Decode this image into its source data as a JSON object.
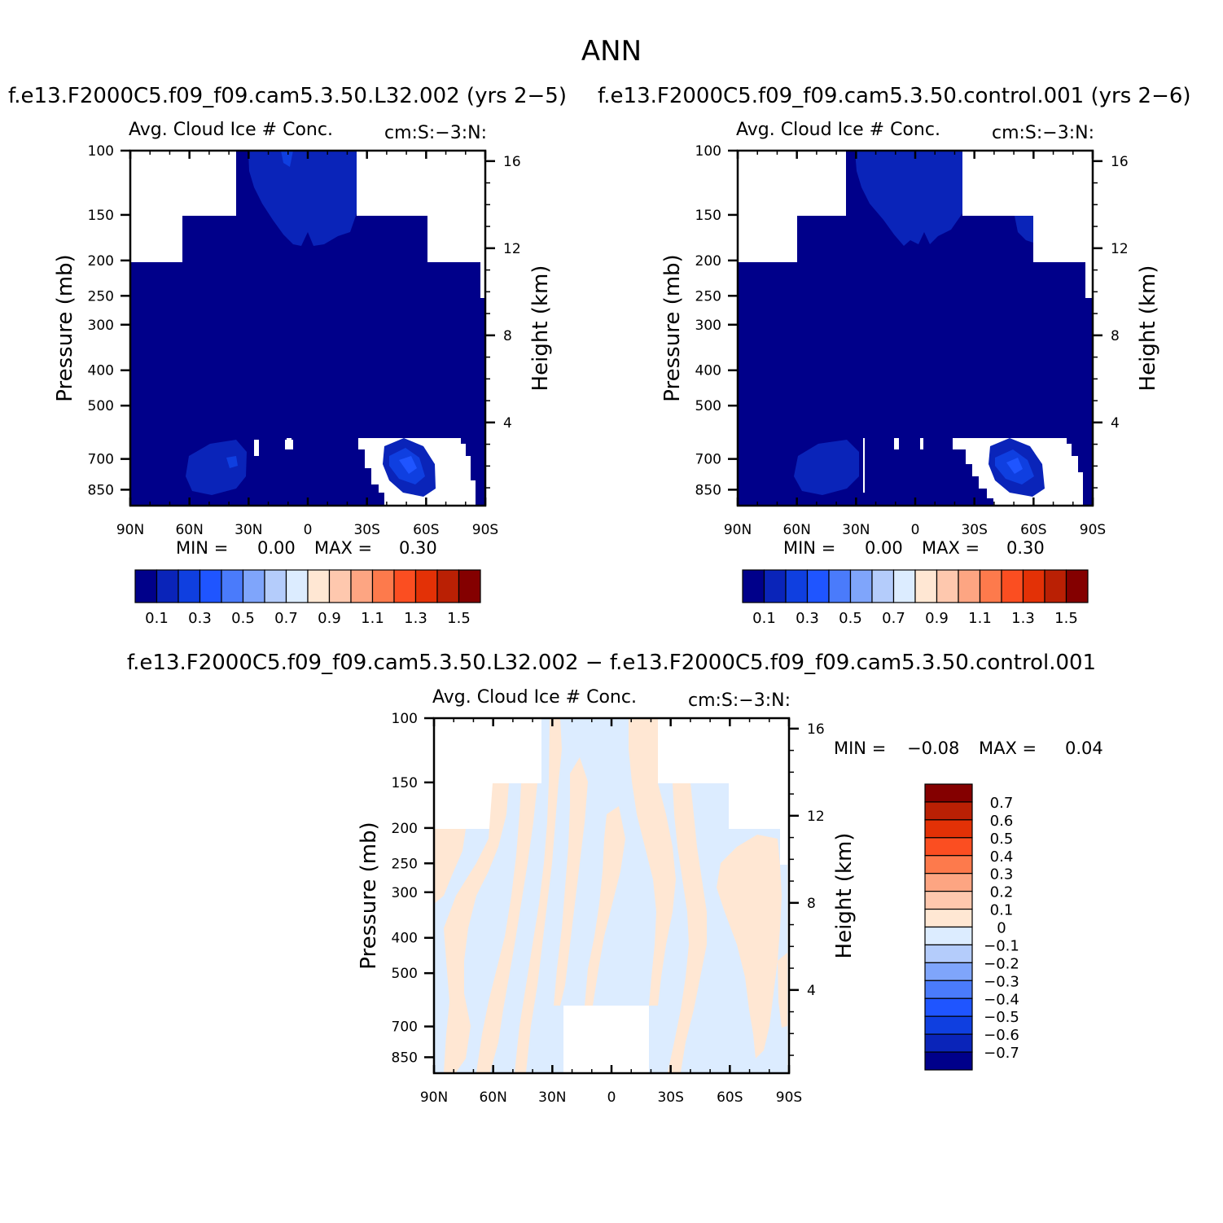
{
  "page_title": "ANN",
  "chart_data": [
    {
      "type": "heatmap",
      "panel": "top-left",
      "title": "f.e13.F2000C5.f09_f09.cam5.3.50.L32.002  (yrs 2-5)",
      "subtitle_left": "Avg. Cloud Ice # Conc.",
      "subtitle_right": "cm:S:-3:N:",
      "ylabel": "Pressure (mb)",
      "y2label": "Height (km)",
      "xticks": [
        "90N",
        "60N",
        "30N",
        "0",
        "30S",
        "60S",
        "90S"
      ],
      "yticks": [
        "100",
        "150",
        "200",
        "250",
        "300",
        "400",
        "500",
        "700",
        "850"
      ],
      "y2ticks": [
        "16",
        "12",
        "8",
        "4"
      ],
      "min_label": "MIN =",
      "min_value": "0.00",
      "max_label": "MAX =",
      "max_value": "0.30",
      "colorbar_labels": [
        "0.1",
        "0.3",
        "0.5",
        "0.7",
        "0.9",
        "1.1",
        "1.3",
        "1.5"
      ],
      "colorbar_colors": [
        "#00008a",
        "#0a24b9",
        "#0f3fe0",
        "#1f55ff",
        "#4a7bfb",
        "#7fa5fb",
        "#b4ccfb",
        "#dcecff",
        "#ffe7d3",
        "#fec8ae",
        "#fda582",
        "#fd7a4c",
        "#fb4e21",
        "#e33106",
        "#ba2004",
        "#840000"
      ]
    },
    {
      "type": "heatmap",
      "panel": "top-right",
      "title": "f.e13.F2000C5.f09_f09.cam5.3.50.control.001  (yrs 2-6)",
      "subtitle_left": "Avg. Cloud Ice # Conc.",
      "subtitle_right": "cm:S:-3:N:",
      "ylabel": "Pressure (mb)",
      "y2label": "Height (km)",
      "xticks": [
        "90N",
        "60N",
        "30N",
        "0",
        "30S",
        "60S",
        "90S"
      ],
      "yticks": [
        "100",
        "150",
        "200",
        "250",
        "300",
        "400",
        "500",
        "700",
        "850"
      ],
      "y2ticks": [
        "16",
        "12",
        "8",
        "4"
      ],
      "min_label": "MIN =",
      "min_value": "0.00",
      "max_label": "MAX =",
      "max_value": "0.30",
      "colorbar_labels": [
        "0.1",
        "0.3",
        "0.5",
        "0.7",
        "0.9",
        "1.1",
        "1.3",
        "1.5"
      ],
      "colorbar_colors": [
        "#00008a",
        "#0a24b9",
        "#0f3fe0",
        "#1f55ff",
        "#4a7bfb",
        "#7fa5fb",
        "#b4ccfb",
        "#dcecff",
        "#ffe7d3",
        "#fec8ae",
        "#fda582",
        "#fd7a4c",
        "#fb4e21",
        "#e33106",
        "#ba2004",
        "#840000"
      ]
    },
    {
      "type": "heatmap",
      "panel": "bottom-difference",
      "title": "f.e13.F2000C5.f09_f09.cam5.3.50.L32.002 - f.e13.F2000C5.f09_f09.cam5.3.50.control.001",
      "subtitle_left": "Avg. Cloud Ice # Conc.",
      "subtitle_right": "cm:S:-3:N:",
      "ylabel": "Pressure (mb)",
      "y2label": "Height (km)",
      "xticks": [
        "90N",
        "60N",
        "30N",
        "0",
        "30S",
        "60S",
        "90S"
      ],
      "yticks": [
        "100",
        "150",
        "200",
        "250",
        "300",
        "400",
        "500",
        "700",
        "850"
      ],
      "y2ticks": [
        "16",
        "12",
        "8",
        "4"
      ],
      "min_label": "MIN =",
      "min_value": "-0.08",
      "max_label": "MAX =",
      "max_value": "0.04",
      "colorbar_labels": [
        "0.7",
        "0.6",
        "0.5",
        "0.4",
        "0.3",
        "0.2",
        "0.1",
        "0",
        "-0.1",
        "-0.2",
        "-0.3",
        "-0.4",
        "-0.5",
        "-0.6",
        "-0.7"
      ],
      "colorbar_colors": [
        "#840000",
        "#ba2004",
        "#e33106",
        "#fb4e21",
        "#fd7a4c",
        "#fda582",
        "#fec8ae",
        "#ffe7d3",
        "#dcecff",
        "#b4ccfb",
        "#7fa5fb",
        "#4a7bfb",
        "#1f55ff",
        "#0f3fe0",
        "#0a24b9",
        "#00008a"
      ]
    }
  ]
}
